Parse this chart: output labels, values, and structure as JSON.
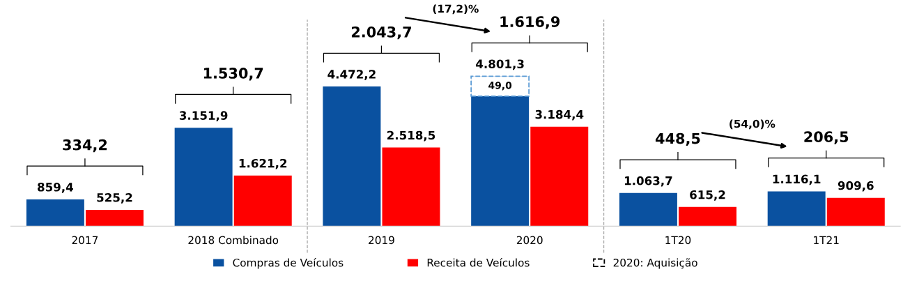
{
  "chart_data": {
    "type": "bar",
    "categories": [
      "2017",
      "2018 Combinado",
      "2019",
      "2020",
      "1T20",
      "1T21"
    ],
    "series": [
      {
        "name": "Compras de Veículos",
        "color": "#0a51a0",
        "values": [
          859.4,
          3151.9,
          4472.2,
          4801.3,
          1063.7,
          1116.1
        ],
        "value_labels": [
          "859,4",
          "3.151,9",
          "4.472,2",
          "4.801,3",
          "1.063,7",
          "1.116,1"
        ]
      },
      {
        "name": "Receita de Veículos",
        "color": "#ff0000",
        "values": [
          525.2,
          1621.2,
          2518.5,
          3184.4,
          615.2,
          909.6
        ],
        "value_labels": [
          "525,2",
          "1.621,2",
          "2.518,5",
          "3.184,4",
          "615,2",
          "909,6"
        ]
      }
    ],
    "annotations": [
      "334,2",
      "1.530,7",
      "2.043,7",
      "(17,2)%",
      "1.616,9",
      "448,5",
      "(54,0)%",
      "206,5",
      "49,0",
      "2020: Aquisição"
    ],
    "legend": "bottom",
    "grid": false,
    "tick_labels": "x"
  }
}
